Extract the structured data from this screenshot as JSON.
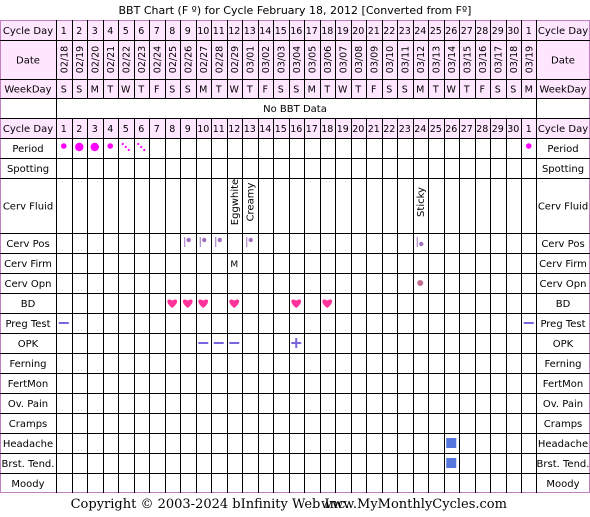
{
  "title": "BBT Chart (F º) for Cycle February 18, 2012  [Converted from Fº]",
  "footer": {
    "copyright": "Copyright © 2003-2024 bInfinity Web Inc.",
    "website": "www.MyMonthlyCycles.com"
  },
  "colors": {
    "background": "#ffffff",
    "header_bg": "#ffe6ff",
    "frame": "#c080c0",
    "grid": "#000000",
    "period_marker": "#ff00ff",
    "cerv_marker": "#a070c0",
    "bd_heart": "#ff3399",
    "test_line": "#7766dd",
    "symptom_square": "#5577dd"
  },
  "chart_data": {
    "type": "table",
    "cycle_days": [
      1,
      2,
      3,
      4,
      5,
      6,
      7,
      8,
      9,
      10,
      11,
      12,
      13,
      14,
      15,
      16,
      17,
      18,
      19,
      20,
      21,
      22,
      23,
      24,
      25,
      26,
      27,
      28,
      29,
      30,
      1
    ],
    "dates": [
      "02/18",
      "02/19",
      "02/20",
      "02/21",
      "02/22",
      "02/23",
      "02/24",
      "02/25",
      "02/26",
      "02/27",
      "02/28",
      "02/29",
      "03/01",
      "03/02",
      "03/03",
      "03/04",
      "03/05",
      "03/06",
      "03/07",
      "03/08",
      "03/09",
      "03/10",
      "03/11",
      "03/12",
      "03/13",
      "03/14",
      "03/15",
      "03/16",
      "03/17",
      "03/18",
      "03/19"
    ],
    "weekdays": [
      "S",
      "S",
      "M",
      "T",
      "W",
      "T",
      "F",
      "S",
      "S",
      "M",
      "T",
      "W",
      "T",
      "F",
      "S",
      "S",
      "M",
      "T",
      "W",
      "T",
      "F",
      "S",
      "S",
      "M",
      "T",
      "W",
      "T",
      "F",
      "S",
      "S",
      "M"
    ],
    "no_data_text": "No BBT Data",
    "labels": {
      "cycle_day": "Cycle Day",
      "date": "Date",
      "weekday": "WeekDay",
      "period": "Period",
      "spotting": "Spotting",
      "cerv_fluid": "Cerv Fluid",
      "cerv_pos": "Cerv Pos",
      "cerv_firm": "Cerv Firm",
      "cerv_opn": "Cerv Opn",
      "bd": "BD",
      "preg_test": "Preg Test",
      "opk": "OPK",
      "ferning": "Ferning",
      "fertmon": "FertMon",
      "ov_pain": "Ov. Pain",
      "cramps": "Cramps",
      "headache": "Headache",
      "brst_tend": "Brst. Tend.",
      "moody": "Moody"
    },
    "period": [
      {
        "col": 1,
        "level": "medium"
      },
      {
        "col": 2,
        "level": "heavy"
      },
      {
        "col": 3,
        "level": "heavy"
      },
      {
        "col": 4,
        "level": "medium"
      },
      {
        "col": 5,
        "level": "spotting-dots"
      },
      {
        "col": 6,
        "level": "spotting-dots"
      },
      {
        "col": 31,
        "level": "medium"
      }
    ],
    "cerv_fluid": [
      {
        "col": 12,
        "text": "Eggwhite"
      },
      {
        "col": 13,
        "text": "Creamy"
      },
      {
        "col": 24,
        "text": "Sticky"
      }
    ],
    "cerv_pos": [
      {
        "col": 9,
        "position": "high"
      },
      {
        "col": 10,
        "position": "high"
      },
      {
        "col": 11,
        "position": "high"
      },
      {
        "col": 13,
        "position": "high"
      },
      {
        "col": 24,
        "position": "low"
      }
    ],
    "cerv_firm": [
      {
        "col": 12,
        "text": "M"
      }
    ],
    "cerv_opn": [
      {
        "col": 24,
        "value": "open"
      }
    ],
    "bd": [
      8,
      9,
      10,
      12,
      16,
      18
    ],
    "preg_test": [
      {
        "col": 1,
        "result": "negative"
      },
      {
        "col": 31,
        "result": "negative"
      }
    ],
    "opk": [
      {
        "col": 10,
        "result": "negative"
      },
      {
        "col": 11,
        "result": "negative"
      },
      {
        "col": 12,
        "result": "negative"
      },
      {
        "col": 16,
        "result": "positive"
      }
    ],
    "headache": [
      26
    ],
    "brst_tend": [
      26
    ]
  }
}
